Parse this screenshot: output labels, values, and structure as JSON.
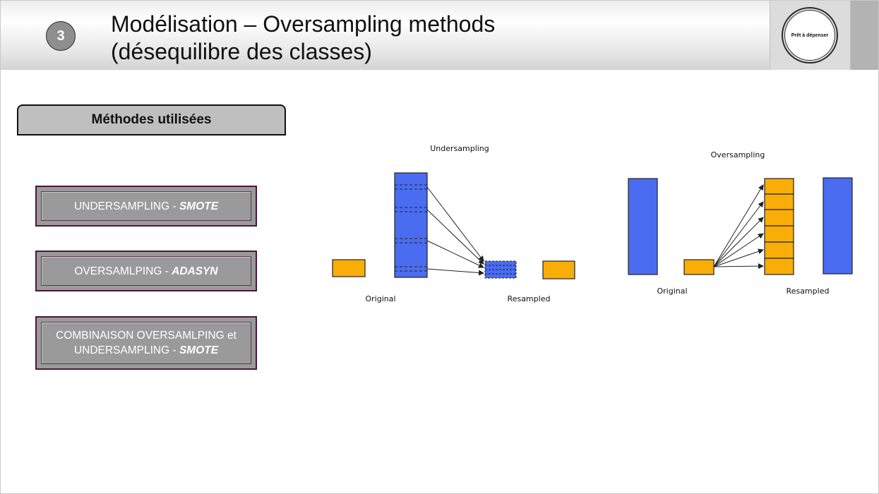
{
  "header": {
    "step_number": "3",
    "title_line1": "Modélisation – Oversampling methods",
    "title_line2": "(désequilibre des classes)",
    "logo_text": "Prêt à dépenser"
  },
  "methods": {
    "heading": "Méthodes utilisées",
    "items": [
      {
        "prefix": "UNDERSAMPLING - ",
        "emph": "SMOTE"
      },
      {
        "prefix": "OVERSAMLPING - ",
        "emph": "ADASYN"
      },
      {
        "prefix_line1": "COMBINAISON OVERSAMLPING et",
        "prefix_line2": "UNDERSAMPLING - ",
        "emph": "SMOTE"
      }
    ]
  },
  "diagrams": {
    "undersampling": {
      "title": "Undersampling",
      "original_label": "Original",
      "resampled_label": "Resampled"
    },
    "oversampling": {
      "title": "Oversampling",
      "original_label": "Original",
      "resampled_label": "Resampled"
    },
    "colors": {
      "majority": "#4a6cf0",
      "minority": "#f8ad07"
    }
  }
}
